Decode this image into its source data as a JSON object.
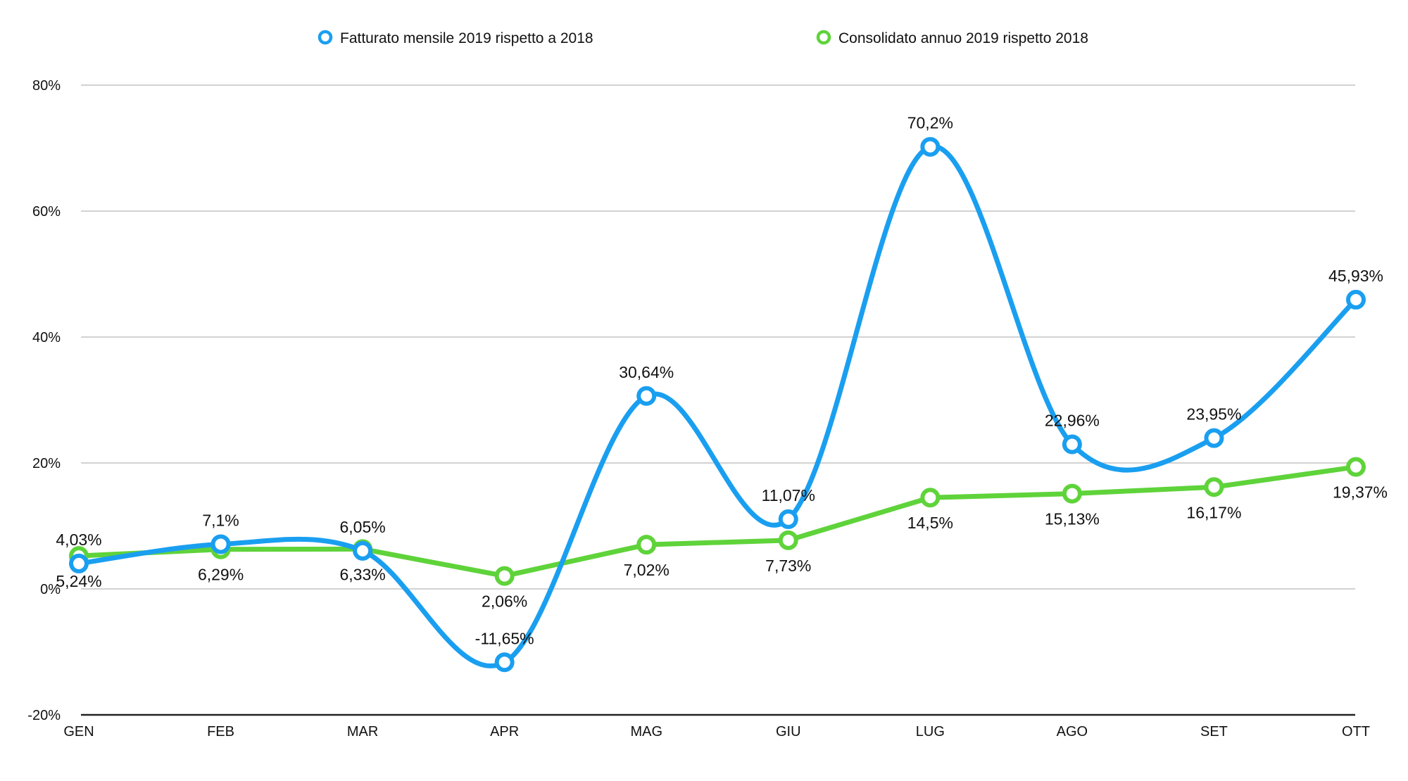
{
  "chart_data": {
    "type": "line",
    "categories": [
      "GEN",
      "FEB",
      "MAR",
      "APR",
      "MAG",
      "GIU",
      "LUG",
      "AGO",
      "SET",
      "OTT"
    ],
    "ylim": [
      -20,
      80
    ],
    "yticks": [
      -20,
      0,
      20,
      40,
      60,
      80
    ],
    "ytick_labels": [
      "-20%",
      "0%",
      "20%",
      "40%",
      "60%",
      "80%"
    ],
    "grid": true,
    "legend_position": "top",
    "smooth": true,
    "series": [
      {
        "name": "Fatturato mensile 2019 rispetto a 2018",
        "color": "#1a9ff0",
        "values": [
          4.03,
          7.1,
          6.05,
          -11.65,
          30.64,
          11.07,
          70.2,
          22.96,
          23.95,
          45.93
        ],
        "labels": [
          "4,03%",
          "7,1%",
          "6,05%",
          "-11,65%",
          "30,64%",
          "11,07%",
          "70,2%",
          "22,96%",
          "23,95%",
          "45,93%"
        ]
      },
      {
        "name": "Consolidato annuo 2019 rispetto 2018",
        "color": "#5fd33a",
        "values": [
          5.24,
          6.29,
          6.33,
          2.06,
          7.02,
          7.73,
          14.5,
          15.13,
          16.17,
          19.37
        ],
        "labels": [
          "5,24%",
          "6,29%",
          "6,33%",
          "2,06%",
          "7,02%",
          "7,73%",
          "14,5%",
          "15,13%",
          "16,17%",
          "19,37%"
        ]
      }
    ]
  }
}
